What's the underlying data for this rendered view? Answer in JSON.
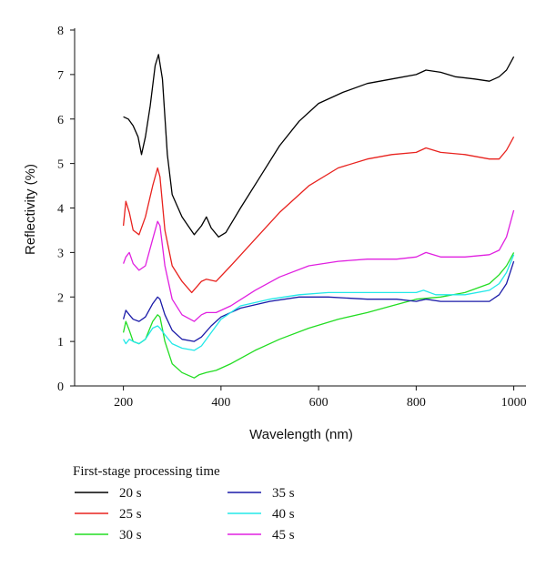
{
  "chart_data": {
    "type": "line",
    "xlabel": "Wavelength (nm)",
    "ylabel": "Reflectivity (%)",
    "xlim": [
      100,
      1025
    ],
    "ylim": [
      0,
      8
    ],
    "xticks": [
      200,
      400,
      600,
      800,
      1000
    ],
    "yticks": [
      0,
      1,
      2,
      3,
      4,
      5,
      6,
      7,
      8
    ],
    "grid": false,
    "legend": {
      "title": "First-stage processing time",
      "placement": "bottom-left, below plot, two columns"
    },
    "series": [
      {
        "name": "20 s",
        "color": "#000000",
        "x": [
          200,
          210,
          220,
          230,
          237,
          245,
          255,
          265,
          272,
          280,
          290,
          300,
          320,
          345,
          360,
          370,
          380,
          395,
          410,
          440,
          480,
          520,
          560,
          600,
          650,
          700,
          750,
          800,
          820,
          850,
          880,
          920,
          950,
          970,
          985,
          1000
        ],
        "y": [
          6.05,
          6.0,
          5.85,
          5.6,
          5.2,
          5.6,
          6.3,
          7.2,
          7.45,
          6.9,
          5.2,
          4.3,
          3.8,
          3.4,
          3.6,
          3.8,
          3.55,
          3.35,
          3.45,
          4.0,
          4.7,
          5.4,
          5.95,
          6.35,
          6.6,
          6.8,
          6.9,
          7.0,
          7.1,
          7.05,
          6.95,
          6.9,
          6.85,
          6.95,
          7.1,
          7.4
        ]
      },
      {
        "name": "25 s",
        "color": "#e8221e",
        "x": [
          200,
          205,
          212,
          220,
          232,
          245,
          260,
          270,
          275,
          285,
          300,
          320,
          340,
          360,
          370,
          390,
          420,
          470,
          520,
          580,
          640,
          700,
          750,
          800,
          820,
          850,
          900,
          950,
          970,
          985,
          1000
        ],
        "y": [
          3.6,
          4.15,
          3.9,
          3.5,
          3.4,
          3.8,
          4.5,
          4.9,
          4.7,
          3.5,
          2.7,
          2.35,
          2.1,
          2.35,
          2.4,
          2.35,
          2.7,
          3.3,
          3.9,
          4.5,
          4.9,
          5.1,
          5.2,
          5.25,
          5.35,
          5.25,
          5.2,
          5.1,
          5.1,
          5.3,
          5.6
        ]
      },
      {
        "name": "30 s",
        "color": "#22dd22",
        "x": [
          200,
          205,
          212,
          220,
          232,
          245,
          260,
          270,
          275,
          285,
          300,
          320,
          345,
          355,
          370,
          390,
          420,
          470,
          520,
          580,
          640,
          700,
          750,
          800,
          850,
          900,
          950,
          970,
          985,
          1000
        ],
        "y": [
          1.2,
          1.45,
          1.25,
          1.0,
          0.95,
          1.05,
          1.45,
          1.6,
          1.55,
          1.0,
          0.5,
          0.3,
          0.18,
          0.25,
          0.3,
          0.35,
          0.5,
          0.8,
          1.05,
          1.3,
          1.5,
          1.65,
          1.8,
          1.95,
          2.0,
          2.1,
          2.3,
          2.5,
          2.7,
          3.0
        ]
      },
      {
        "name": "35 s",
        "color": "#1a1aa8",
        "x": [
          200,
          205,
          212,
          220,
          232,
          245,
          260,
          270,
          275,
          285,
          300,
          320,
          345,
          360,
          380,
          400,
          440,
          500,
          560,
          620,
          700,
          760,
          800,
          820,
          850,
          900,
          950,
          970,
          985,
          1000
        ],
        "y": [
          1.5,
          1.7,
          1.6,
          1.5,
          1.45,
          1.55,
          1.85,
          2.0,
          1.95,
          1.6,
          1.25,
          1.05,
          1.0,
          1.1,
          1.35,
          1.55,
          1.75,
          1.9,
          2.0,
          2.0,
          1.95,
          1.95,
          1.9,
          1.95,
          1.9,
          1.9,
          1.9,
          2.05,
          2.3,
          2.8
        ]
      },
      {
        "name": "40 s",
        "color": "#22e8e8",
        "x": [
          200,
          205,
          212,
          220,
          232,
          245,
          260,
          270,
          275,
          285,
          300,
          320,
          345,
          360,
          380,
          400,
          440,
          500,
          560,
          620,
          700,
          760,
          800,
          815,
          840,
          900,
          950,
          970,
          985,
          1000
        ],
        "y": [
          1.05,
          0.95,
          1.05,
          1.0,
          0.95,
          1.05,
          1.3,
          1.35,
          1.3,
          1.15,
          0.95,
          0.85,
          0.8,
          0.9,
          1.2,
          1.5,
          1.8,
          1.95,
          2.05,
          2.1,
          2.1,
          2.1,
          2.1,
          2.15,
          2.05,
          2.05,
          2.15,
          2.3,
          2.55,
          2.95
        ]
      },
      {
        "name": "45 s",
        "color": "#e020e0",
        "x": [
          200,
          205,
          212,
          220,
          232,
          245,
          260,
          270,
          275,
          285,
          300,
          320,
          345,
          360,
          370,
          390,
          420,
          470,
          520,
          580,
          640,
          700,
          760,
          800,
          820,
          850,
          900,
          950,
          970,
          985,
          1000
        ],
        "y": [
          2.75,
          2.9,
          3.0,
          2.75,
          2.6,
          2.7,
          3.3,
          3.7,
          3.6,
          2.7,
          1.95,
          1.6,
          1.45,
          1.6,
          1.65,
          1.65,
          1.8,
          2.15,
          2.45,
          2.7,
          2.8,
          2.85,
          2.85,
          2.9,
          3.0,
          2.9,
          2.9,
          2.95,
          3.05,
          3.35,
          3.95
        ]
      }
    ]
  }
}
